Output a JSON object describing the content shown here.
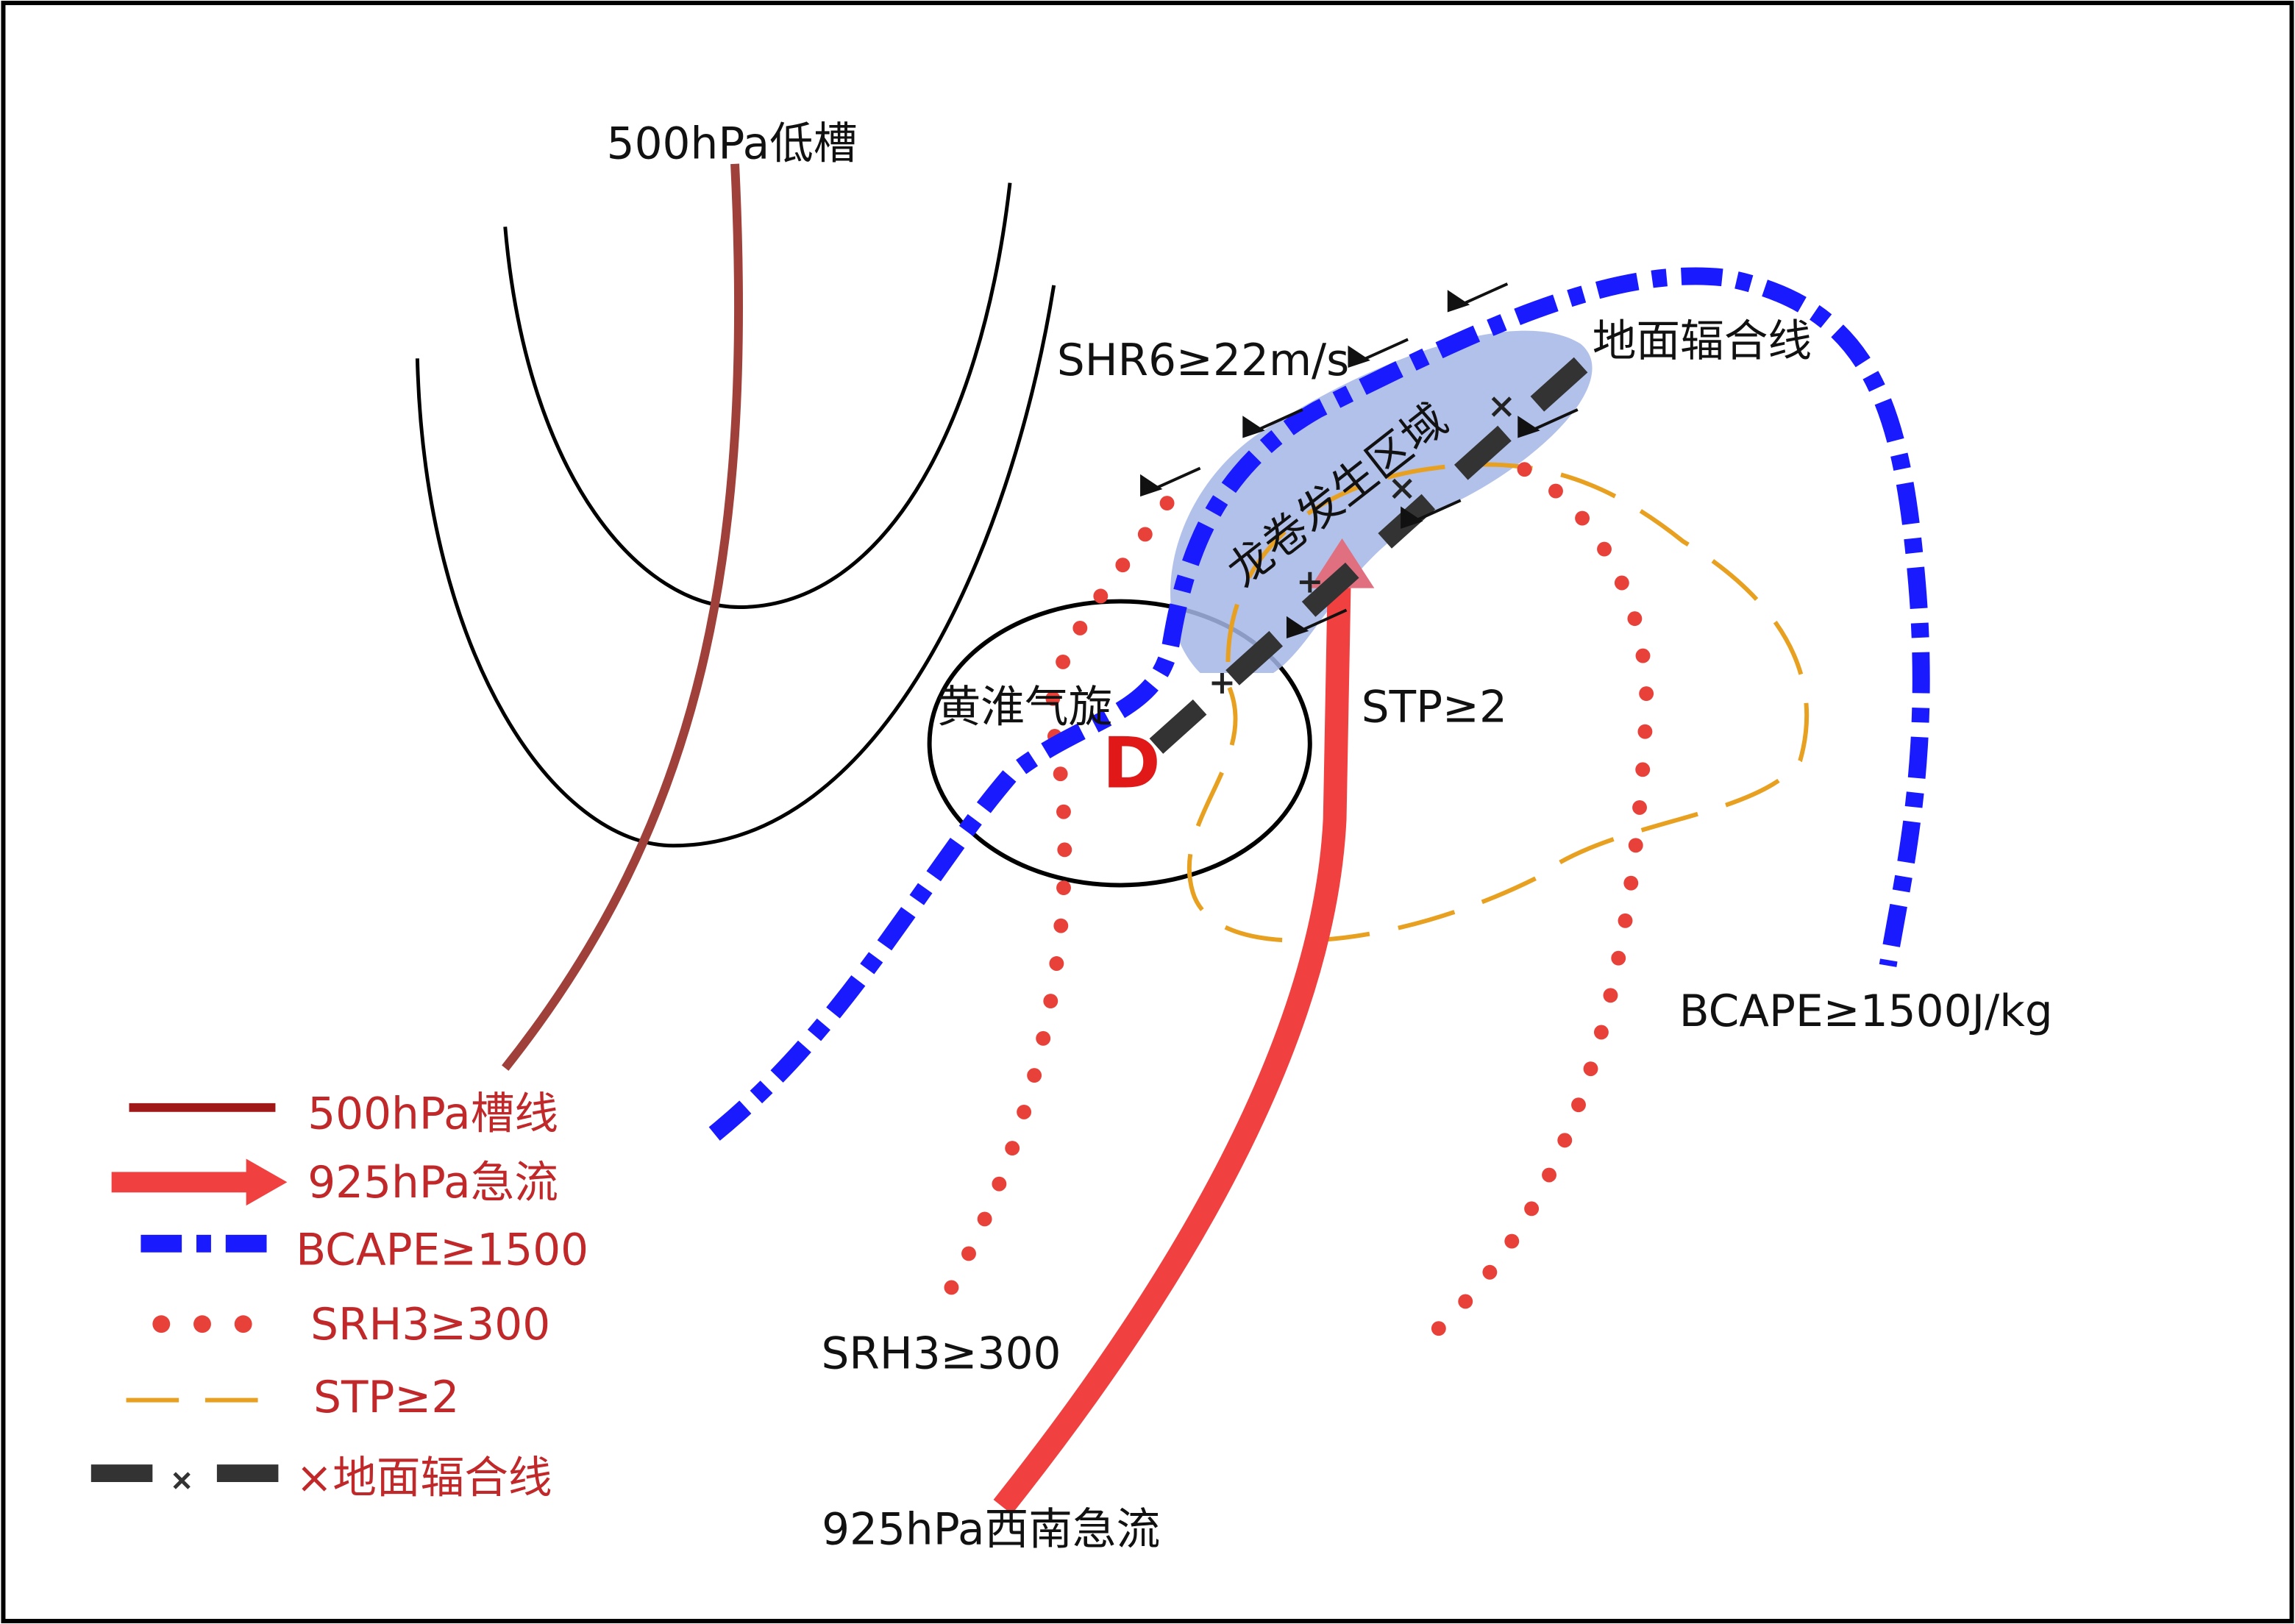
{
  "labels": {
    "trough": "500hPa低槽",
    "shr6": "SHR6≥22m/s",
    "convergence": "地面辐合线",
    "tornado_area": "龙卷发生区域",
    "cyclone": "黄淮气旋",
    "low": "D",
    "stp": "STP≥2",
    "bcape": "BCAPE≥1500J/kg",
    "srh3": "SRH3≥300",
    "jet": "925hPa西南急流"
  },
  "legend": [
    "500hPa槽线",
    "925hPa急流",
    "BCAPE≥1500",
    "SRH3≥300",
    "STP≥2",
    "×地面辐合线"
  ]
}
